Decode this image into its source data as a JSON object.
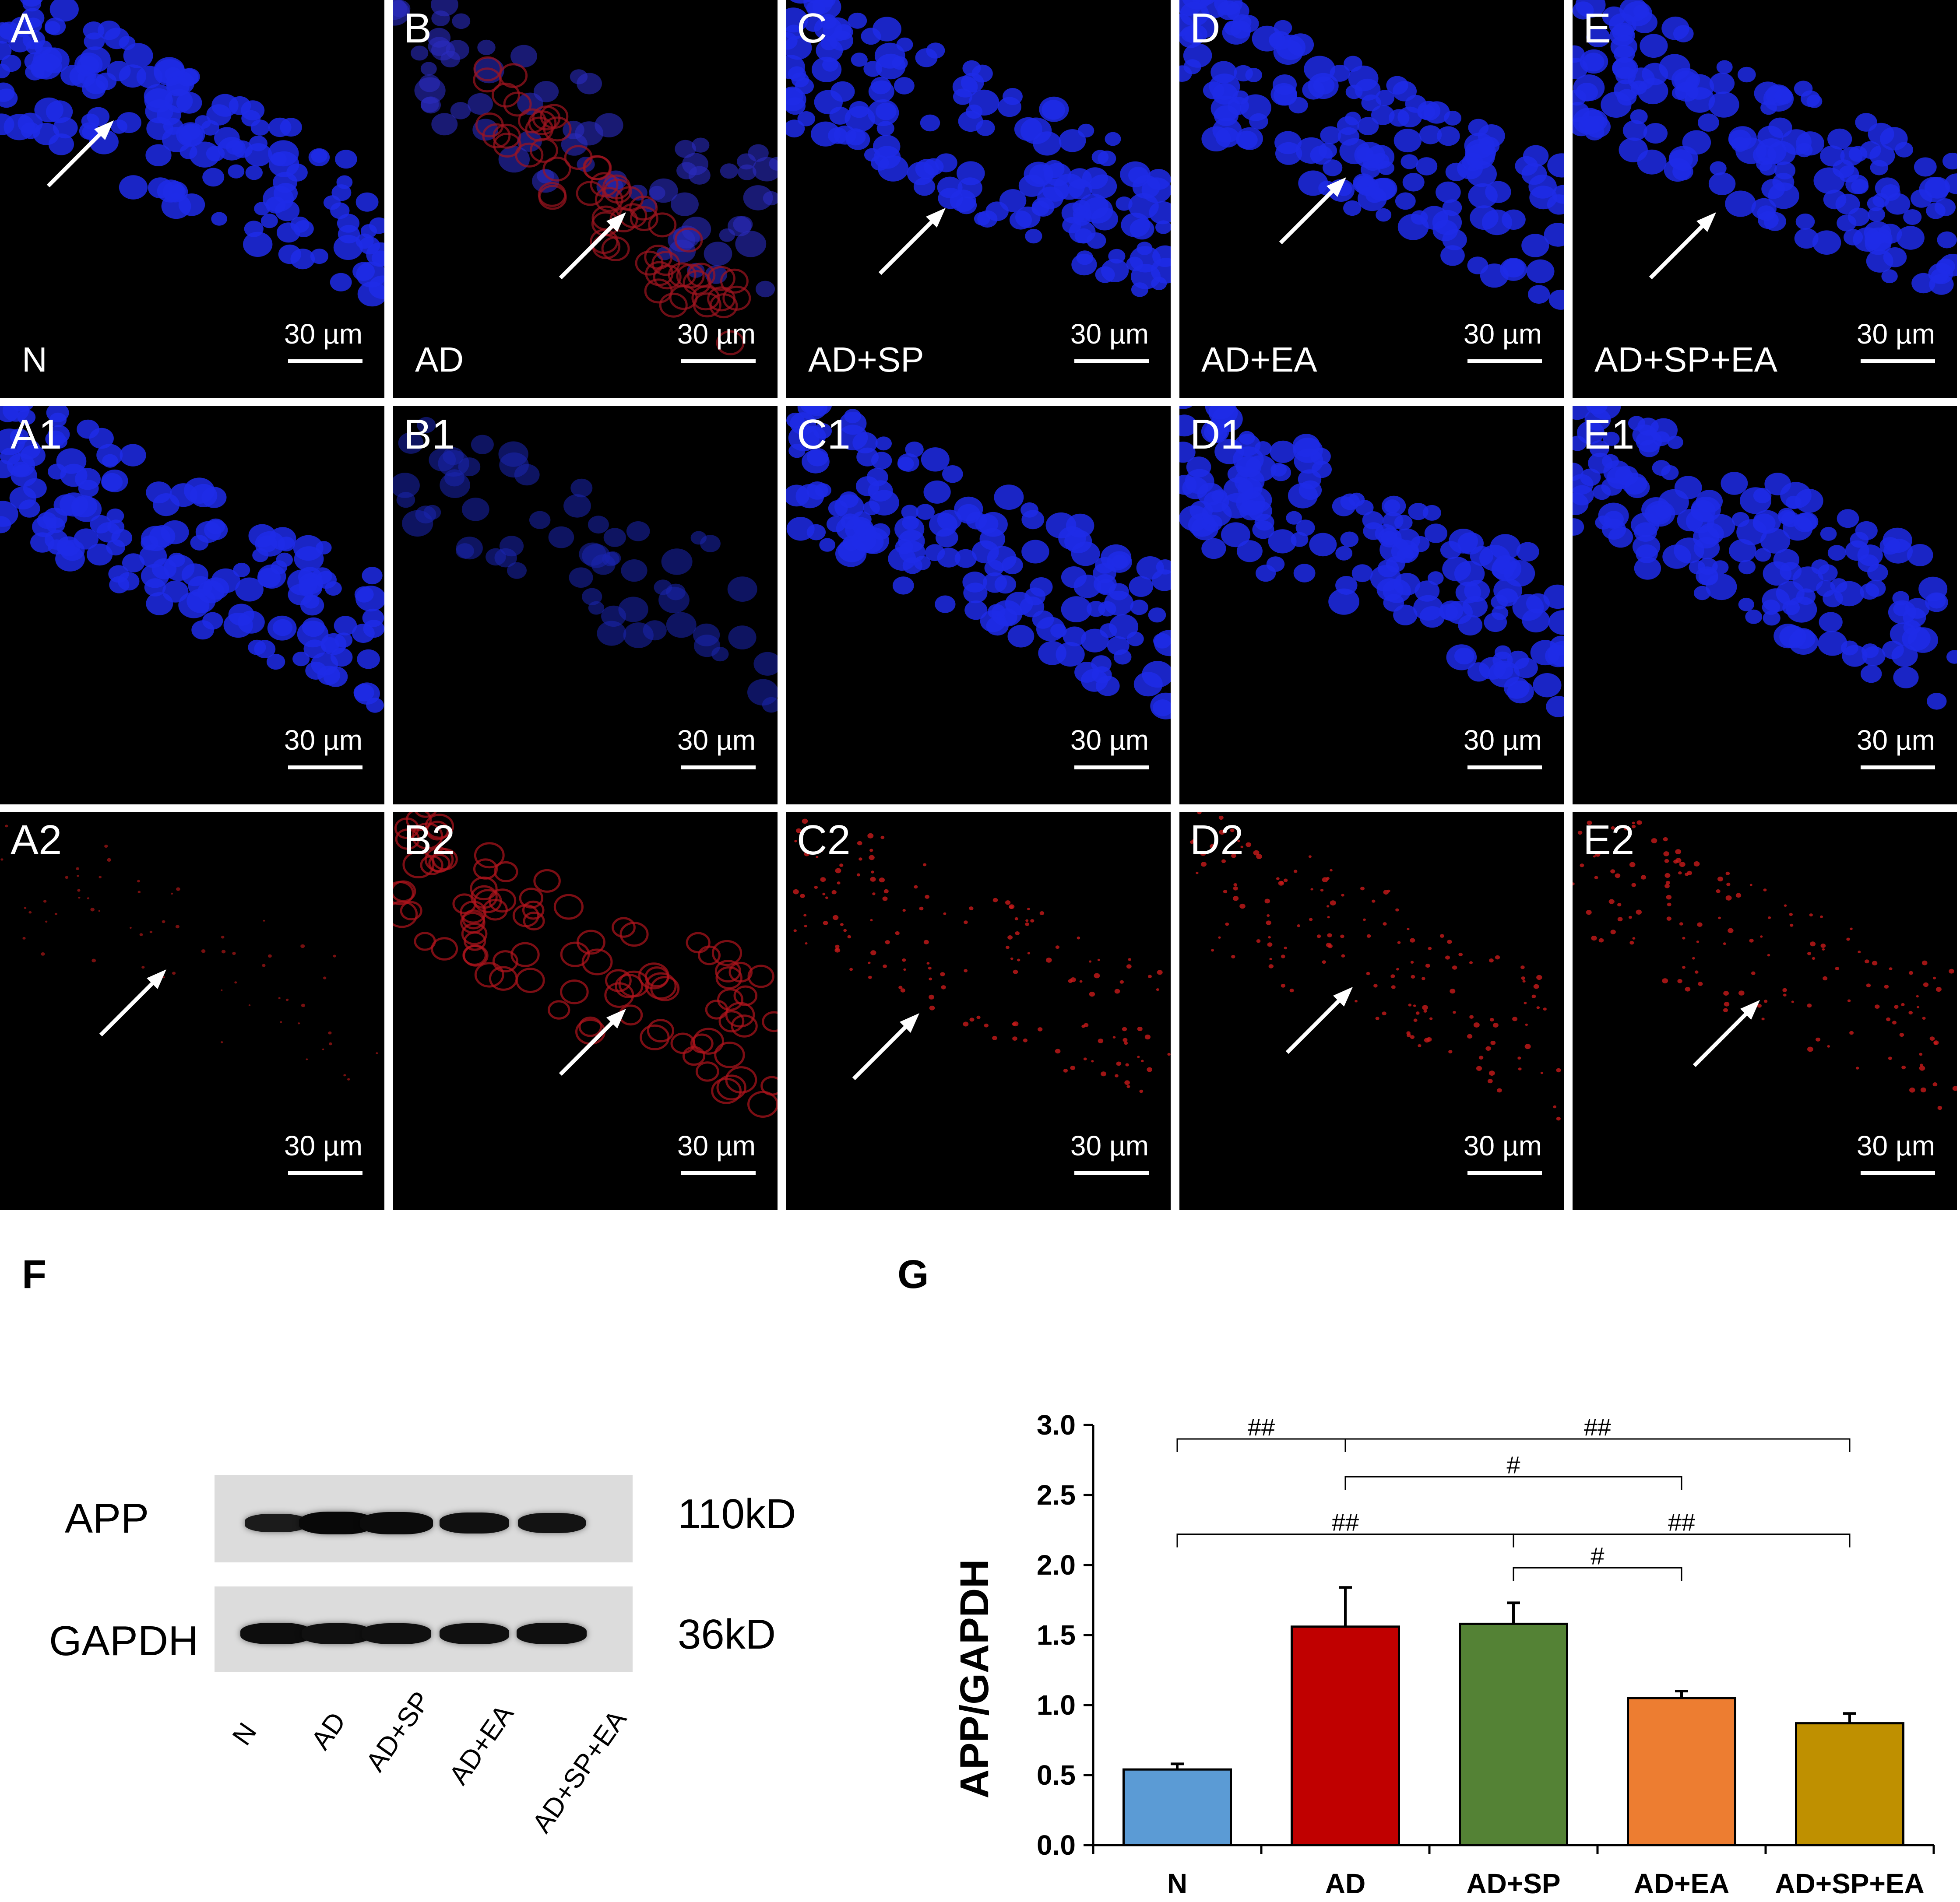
{
  "microscopy": {
    "scale_text": "30 µm",
    "rows": [
      {
        "panels": [
          {
            "label": "A",
            "group": "N",
            "bg": "blue"
          },
          {
            "label": "B",
            "group": "AD",
            "bg": "merge-red"
          },
          {
            "label": "C",
            "group": "AD+SP",
            "bg": "blue"
          },
          {
            "label": "D",
            "group": "AD+EA",
            "bg": "blue"
          },
          {
            "label": "E",
            "group": "AD+SP+EA",
            "bg": "blue"
          }
        ]
      },
      {
        "panels": [
          {
            "label": "A1",
            "group": "",
            "bg": "blue"
          },
          {
            "label": "B1",
            "group": "",
            "bg": "blue-dim"
          },
          {
            "label": "C1",
            "group": "",
            "bg": "blue"
          },
          {
            "label": "D1",
            "group": "",
            "bg": "blue"
          },
          {
            "label": "E1",
            "group": "",
            "bg": "blue"
          }
        ]
      },
      {
        "panels": [
          {
            "label": "A2",
            "group": "",
            "bg": "red-dim"
          },
          {
            "label": "B2",
            "group": "",
            "bg": "red"
          },
          {
            "label": "C2",
            "group": "",
            "bg": "red-mid"
          },
          {
            "label": "D2",
            "group": "",
            "bg": "red-mid"
          },
          {
            "label": "E2",
            "group": "",
            "bg": "red-mid"
          }
        ]
      }
    ]
  },
  "western": {
    "panel_label": "F",
    "rows": [
      {
        "protein": "APP",
        "size": "110kD",
        "band_intensity": [
          0.6,
          0.95,
          0.9,
          0.8,
          0.75
        ]
      },
      {
        "protein": "GAPDH",
        "size": "36kD",
        "band_intensity": [
          0.85,
          0.8,
          0.8,
          0.8,
          0.82
        ]
      }
    ],
    "lanes": [
      "N",
      "AD",
      "AD+SP",
      "AD+EA",
      "AD+SP+EA"
    ]
  },
  "chart_data": {
    "panel_label": "G",
    "type": "bar",
    "categories": [
      "N",
      "AD",
      "AD+SP",
      "AD+EA",
      "AD+SP+EA"
    ],
    "values": [
      0.54,
      1.56,
      1.58,
      1.05,
      0.87
    ],
    "errors": [
      0.04,
      0.28,
      0.15,
      0.05,
      0.07
    ],
    "colors": [
      "#5b9bd5",
      "#c00000",
      "#548235",
      "#ed7d31",
      "#bf9000"
    ],
    "ylabel": "APP/GAPDH",
    "xlabel": "",
    "ylim": [
      0,
      3.0
    ],
    "yticks": [
      "0.0",
      "0.5",
      "1.0",
      "1.5",
      "2.0",
      "2.5",
      "3.0"
    ],
    "significance": [
      {
        "from": "N",
        "to": "AD",
        "level": 2.9,
        "label": "##"
      },
      {
        "from": "AD",
        "to": "AD+SP+EA",
        "level": 2.9,
        "label": "##"
      },
      {
        "from": "AD",
        "to": "AD+EA",
        "level": 2.63,
        "label": "#"
      },
      {
        "from": "N",
        "to": "AD+SP",
        "level": 2.22,
        "label": "##"
      },
      {
        "from": "AD+SP",
        "to": "AD+SP+EA",
        "level": 2.22,
        "label": "##"
      },
      {
        "from": "AD+SP",
        "to": "AD+EA",
        "level": 1.98,
        "label": "#"
      }
    ]
  }
}
